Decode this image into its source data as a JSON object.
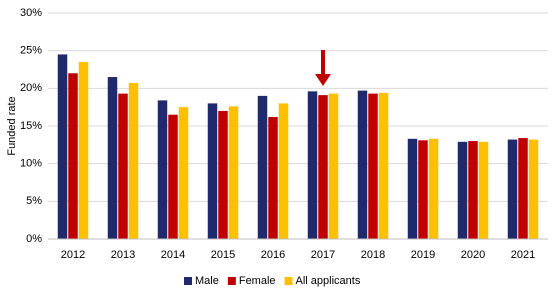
{
  "chart_data": {
    "type": "bar",
    "y_label": "Funded rate",
    "categories": [
      "2012",
      "2013",
      "2014",
      "2015",
      "2016",
      "2017",
      "2018",
      "2019",
      "2020",
      "2021"
    ],
    "series": [
      {
        "name": "Male",
        "color": "#1f2a6e",
        "values": [
          24.5,
          21.5,
          18.4,
          18.0,
          19.0,
          19.6,
          19.7,
          13.3,
          12.9,
          13.2
        ]
      },
      {
        "name": "Female",
        "color": "#c00000",
        "values": [
          22.0,
          19.3,
          16.5,
          17.0,
          16.2,
          19.1,
          19.3,
          13.1,
          13.0,
          13.4
        ]
      },
      {
        "name": "All applicants",
        "color": "#ffc000",
        "values": [
          23.5,
          20.7,
          17.5,
          17.6,
          18.0,
          19.3,
          19.4,
          13.3,
          12.9,
          13.2
        ]
      }
    ],
    "ylim": [
      0,
      30
    ],
    "yticks": [
      {
        "value": 0,
        "label": "0%"
      },
      {
        "value": 5,
        "label": "5%"
      },
      {
        "value": 10,
        "label": "10%"
      },
      {
        "value": 15,
        "label": "15%"
      },
      {
        "value": 20,
        "label": "20%"
      },
      {
        "value": 25,
        "label": "25%"
      },
      {
        "value": 30,
        "label": "30%"
      }
    ],
    "grid": true,
    "legend": "bottom"
  }
}
